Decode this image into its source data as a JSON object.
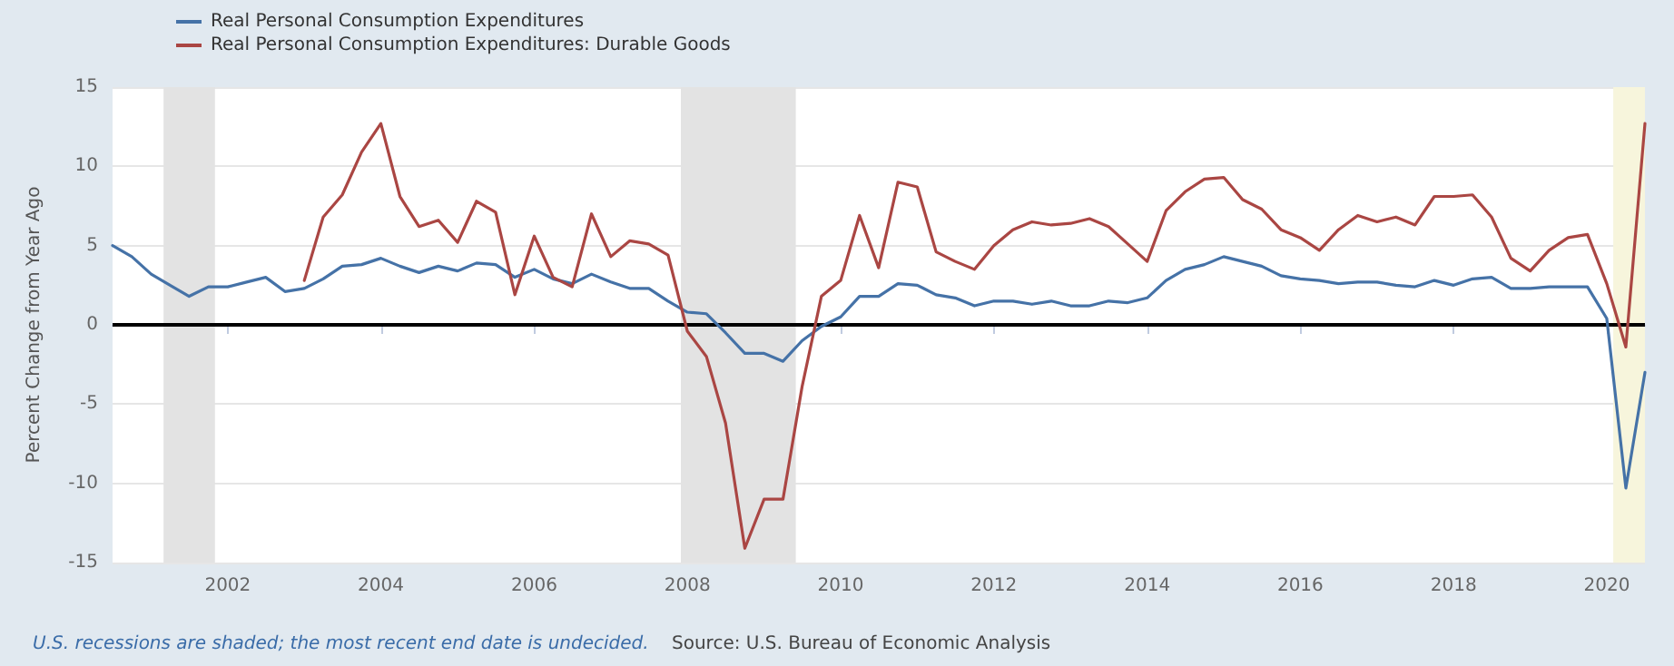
{
  "chart_data": {
    "type": "line",
    "ylabel": "Percent Change from Year Ago",
    "x": [
      "2000-07",
      "2000-10",
      "2001-01",
      "2001-04",
      "2001-07",
      "2001-10",
      "2002-01",
      "2002-04",
      "2002-07",
      "2002-10",
      "2003-01",
      "2003-04",
      "2003-07",
      "2003-10",
      "2004-01",
      "2004-04",
      "2004-07",
      "2004-10",
      "2005-01",
      "2005-04",
      "2005-07",
      "2005-10",
      "2006-01",
      "2006-04",
      "2006-07",
      "2006-10",
      "2007-01",
      "2007-04",
      "2007-07",
      "2007-10",
      "2008-01",
      "2008-04",
      "2008-07",
      "2008-10",
      "2009-01",
      "2009-04",
      "2009-07",
      "2009-10",
      "2010-01",
      "2010-04",
      "2010-07",
      "2010-10",
      "2011-01",
      "2011-04",
      "2011-07",
      "2011-10",
      "2012-01",
      "2012-04",
      "2012-07",
      "2012-10",
      "2013-01",
      "2013-04",
      "2013-07",
      "2013-10",
      "2014-01",
      "2014-04",
      "2014-07",
      "2014-10",
      "2015-01",
      "2015-04",
      "2015-07",
      "2015-10",
      "2016-01",
      "2016-04",
      "2016-07",
      "2016-10",
      "2017-01",
      "2017-04",
      "2017-07",
      "2017-10",
      "2018-01",
      "2018-04",
      "2018-07",
      "2018-10",
      "2019-01",
      "2019-04",
      "2019-07",
      "2019-10",
      "2020-01",
      "2020-04",
      "2020-07"
    ],
    "series": [
      {
        "name": "Real Personal Consumption Expenditures",
        "color": "#4572a7",
        "values": [
          5.0,
          4.3,
          3.2,
          2.5,
          1.8,
          2.4,
          2.4,
          2.7,
          3.0,
          2.1,
          2.3,
          2.9,
          3.7,
          3.8,
          4.2,
          3.7,
          3.3,
          3.7,
          3.4,
          3.9,
          3.8,
          3.0,
          3.5,
          2.9,
          2.6,
          3.2,
          2.7,
          2.3,
          2.3,
          1.5,
          0.8,
          0.7,
          -0.5,
          -1.8,
          -1.8,
          -2.3,
          -1.0,
          -0.1,
          0.5,
          1.8,
          1.8,
          2.6,
          2.5,
          1.9,
          1.7,
          1.2,
          1.5,
          1.5,
          1.3,
          1.5,
          1.2,
          1.2,
          1.5,
          1.4,
          1.7,
          2.8,
          3.5,
          3.8,
          4.3,
          4.0,
          3.7,
          3.1,
          2.9,
          2.8,
          2.6,
          2.7,
          2.7,
          2.5,
          2.4,
          2.8,
          2.5,
          2.9,
          3.0,
          2.3,
          2.3,
          2.4,
          2.4,
          2.4,
          0.4,
          -10.3,
          -3.0
        ]
      },
      {
        "name": "Real Personal Consumption Expenditures: Durable Goods",
        "color": "#aa4643",
        "values": [
          null,
          null,
          null,
          null,
          null,
          null,
          null,
          null,
          null,
          null,
          2.8,
          6.8,
          8.2,
          10.9,
          12.7,
          8.1,
          6.2,
          6.6,
          5.2,
          7.8,
          7.1,
          1.9,
          5.6,
          3.0,
          2.4,
          7.0,
          4.3,
          5.3,
          5.1,
          4.4,
          -0.4,
          -2.0,
          -6.2,
          -14.1,
          -11.0,
          -11.0,
          -3.9,
          1.8,
          2.8,
          6.9,
          3.6,
          9.0,
          8.7,
          4.6,
          4.0,
          3.5,
          5.0,
          6.0,
          6.5,
          6.3,
          6.4,
          6.7,
          6.2,
          5.1,
          4.0,
          7.2,
          8.4,
          9.2,
          9.3,
          7.9,
          7.3,
          6.0,
          5.5,
          4.7,
          6.0,
          6.9,
          6.5,
          6.8,
          6.3,
          8.1,
          8.1,
          8.2,
          6.8,
          4.2,
          3.4,
          4.7,
          5.5,
          5.7,
          2.6,
          -1.4,
          12.7
        ]
      }
    ],
    "xlim": [
      "2000-07",
      "2020-07"
    ],
    "xticks": [
      "2002",
      "2004",
      "2006",
      "2008",
      "2010",
      "2012",
      "2014",
      "2016",
      "2018",
      "2020"
    ],
    "ylim": [
      -15,
      15
    ],
    "yticks": [
      -15,
      -10,
      -5,
      0,
      5,
      10,
      15
    ],
    "ref_lines": [
      {
        "axis": "y",
        "value": 0,
        "color": "#000000"
      }
    ],
    "bands": [
      {
        "axis": "x",
        "from": "2001-03",
        "to": "2001-11",
        "color": "#e3e3e3"
      },
      {
        "axis": "x",
        "from": "2007-12",
        "to": "2009-06",
        "color": "#e3e3e3"
      },
      {
        "axis": "x",
        "from": "2020-02",
        "to": "2020-07",
        "color": "#f7f5dc"
      }
    ],
    "annotations": [
      "U.S. recessions are shaded; the most recent end date is undecided.",
      "Source: U.S. Bureau of Economic Analysis"
    ],
    "grid": "y",
    "legend": "top left",
    "marker": "none",
    "line_style": "solid"
  }
}
